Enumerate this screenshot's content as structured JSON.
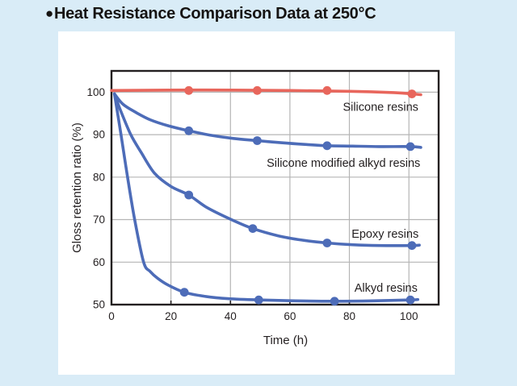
{
  "window": {
    "background_color": "#d9ecf7",
    "panel_color": "#ffffff"
  },
  "header": {
    "bullet": "●",
    "title": "Heat Resistance Comparison Data at 250°C"
  },
  "chart_data": {
    "type": "line",
    "title": "Heat Resistance Comparison Data at 250°C",
    "xlabel": "Time (h)",
    "ylabel": "Gloss retention ratio (%)",
    "xlim": [
      0,
      110
    ],
    "ylim": [
      50,
      105
    ],
    "xticks": [
      0,
      20,
      40,
      60,
      80,
      100
    ],
    "yticks": [
      50,
      60,
      70,
      80,
      90,
      100
    ],
    "grid": true,
    "grid_color": "#b5b5b5",
    "axis_color": "#231f20",
    "legend_position": "inline-annotations",
    "series": [
      {
        "name": "Silicone resins",
        "color": "#e8665c",
        "points": [
          [
            26,
            100.4
          ],
          [
            49,
            100.4
          ],
          [
            72.5,
            100.4
          ],
          [
            101,
            99.6
          ]
        ],
        "curve": [
          [
            0,
            100.4
          ],
          [
            30,
            100.5
          ],
          [
            60,
            100.4
          ],
          [
            80,
            100.2
          ],
          [
            95,
            99.9
          ],
          [
            101,
            99.6
          ],
          [
            104,
            99.4
          ]
        ],
        "label_anchor": [
          90.5,
          95.6
        ]
      },
      {
        "name": "Silicone modified alkyd resins",
        "color": "#4d6cb8",
        "points": [
          [
            26,
            90.9
          ],
          [
            49,
            88.6
          ],
          [
            72.5,
            87.4
          ],
          [
            100.5,
            87.2
          ]
        ],
        "curve": [
          [
            1,
            99.6
          ],
          [
            3.8,
            97.2
          ],
          [
            8,
            95.3
          ],
          [
            13,
            93.5
          ],
          [
            19,
            92.1
          ],
          [
            26,
            90.9
          ],
          [
            33,
            89.9
          ],
          [
            41,
            89.1
          ],
          [
            49,
            88.6
          ],
          [
            57,
            88.1
          ],
          [
            65,
            87.7
          ],
          [
            72.5,
            87.4
          ],
          [
            81,
            87.3
          ],
          [
            90,
            87.2
          ],
          [
            100.5,
            87.2
          ],
          [
            104,
            87.0
          ]
        ],
        "label_anchor": [
          78,
          82.4
        ]
      },
      {
        "name": "Epoxy resins",
        "color": "#4d6cb8",
        "points": [
          [
            26,
            75.8
          ],
          [
            47.5,
            67.9
          ],
          [
            72.5,
            64.5
          ],
          [
            101,
            63.9
          ]
        ],
        "curve": [
          [
            1,
            99.6
          ],
          [
            3,
            95.8
          ],
          [
            6.5,
            90
          ],
          [
            10,
            85.8
          ],
          [
            14.5,
            80.9
          ],
          [
            20,
            77.8
          ],
          [
            26,
            75.8
          ],
          [
            32,
            72.9
          ],
          [
            40,
            70.1
          ],
          [
            47.5,
            67.9
          ],
          [
            56,
            66.2
          ],
          [
            64,
            65.2
          ],
          [
            72.5,
            64.5
          ],
          [
            81,
            64.1
          ],
          [
            90,
            63.9
          ],
          [
            101,
            63.9
          ],
          [
            103.5,
            64.0
          ]
        ],
        "label_anchor": [
          92,
          65.7
        ]
      },
      {
        "name": "Alkyd resins",
        "color": "#4d6cb8",
        "points": [
          [
            24.5,
            52.9
          ],
          [
            49.5,
            51.1
          ],
          [
            75,
            50.8
          ],
          [
            100.5,
            51.1
          ]
        ],
        "curve": [
          [
            1,
            99.6
          ],
          [
            3.2,
            90
          ],
          [
            5.4,
            80
          ],
          [
            7.8,
            70
          ],
          [
            10.8,
            60
          ],
          [
            13,
            57.8
          ],
          [
            15.5,
            56.2
          ],
          [
            19,
            54.6
          ],
          [
            24.5,
            52.9
          ],
          [
            31,
            52.0
          ],
          [
            39,
            51.4
          ],
          [
            49.5,
            51.1
          ],
          [
            62,
            50.9
          ],
          [
            75,
            50.8
          ],
          [
            88,
            50.9
          ],
          [
            100.5,
            51.1
          ],
          [
            103,
            51.2
          ]
        ],
        "label_anchor": [
          92.3,
          53.0
        ]
      }
    ]
  }
}
